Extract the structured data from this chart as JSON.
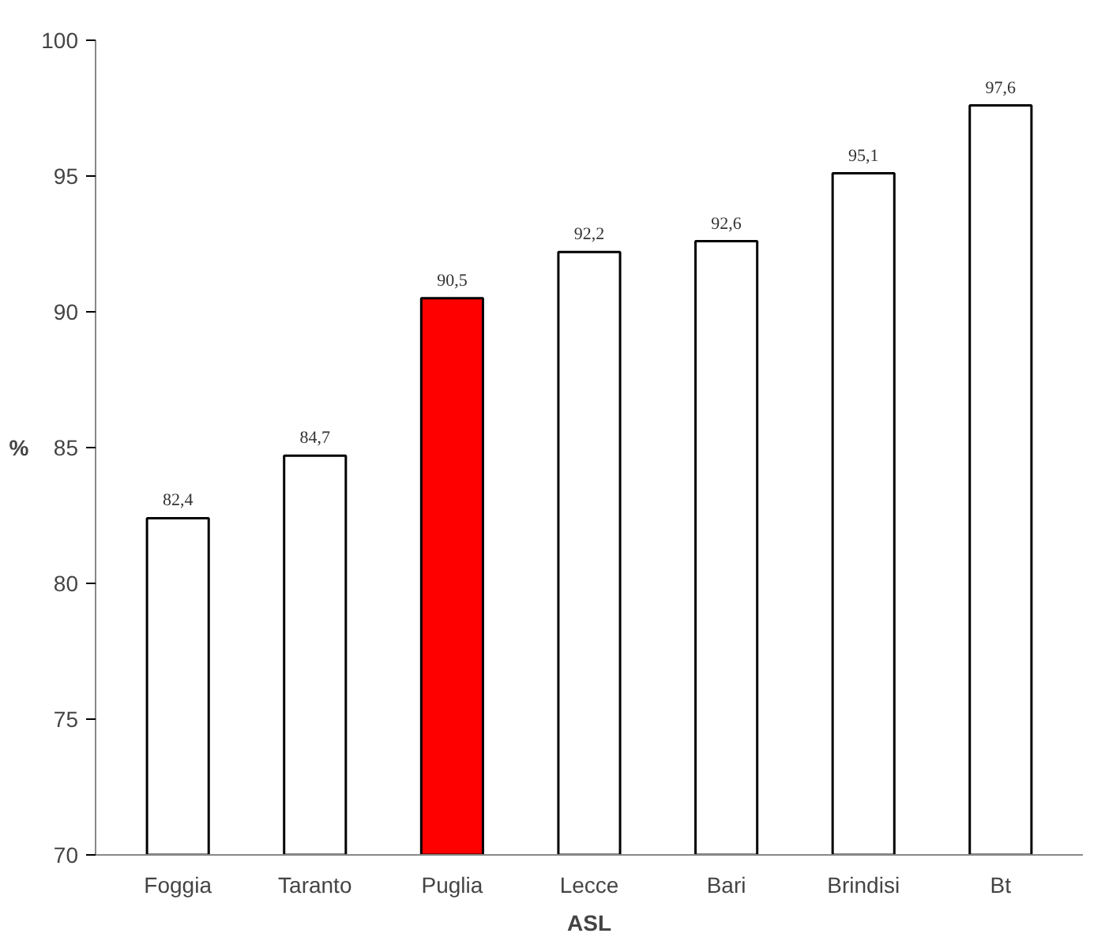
{
  "chart_data": {
    "type": "bar",
    "categories": [
      "Foggia",
      "Taranto",
      "Puglia",
      "Lecce",
      "Bari",
      "Brindisi",
      "Bt"
    ],
    "values": [
      82.4,
      84.7,
      90.5,
      92.2,
      92.6,
      95.1,
      97.6
    ],
    "colors": [
      "#ffffff",
      "#ffffff",
      "#ff0000",
      "#ffffff",
      "#ffffff",
      "#ffffff",
      "#ffffff"
    ],
    "value_labels": [
      "82,4",
      "84,7",
      "90,5",
      "92,2",
      "92,6",
      "95,1",
      "97,6"
    ],
    "xlabel": "ASL",
    "ylabel": "%",
    "ylim": [
      70,
      100
    ],
    "yticks": [
      70,
      75,
      80,
      85,
      90,
      95,
      100
    ],
    "grid": false
  }
}
